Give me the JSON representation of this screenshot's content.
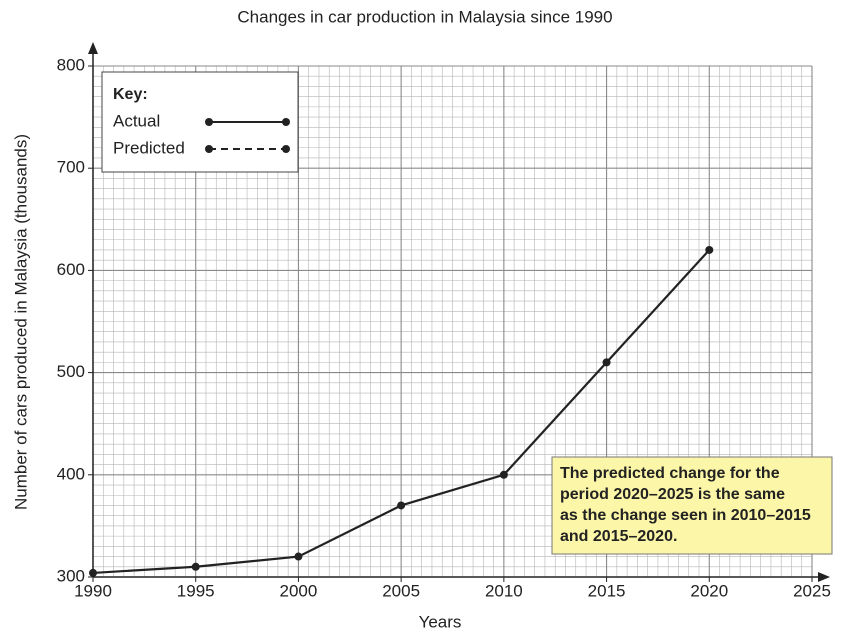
{
  "chart_data": {
    "type": "line",
    "title": "Changes in car production in Malaysia since 1990",
    "x_label": "Years",
    "y_label": "Number of cars produced in Malaysia (thousands)",
    "x": [
      1990,
      1995,
      2000,
      2005,
      2010,
      2015,
      2020
    ],
    "series": [
      {
        "name": "Actual",
        "color": "#222222",
        "style": "solid",
        "values": [
          304,
          310,
          320,
          370,
          400,
          510,
          620
        ]
      },
      {
        "name": "Predicted",
        "color": "#222222",
        "style": "dashed",
        "values": [
          null,
          null,
          null,
          null,
          null,
          null,
          null
        ]
      }
    ],
    "legend_title": "Key:",
    "legend_position": "upper left",
    "xlim": [
      1990,
      2025
    ],
    "xticks": [
      1990,
      1995,
      2000,
      2005,
      2010,
      2015,
      2020,
      2025
    ],
    "ylim": [
      300,
      800
    ],
    "yticks": [
      300,
      400,
      500,
      600,
      700,
      800
    ],
    "grid": true,
    "annotation": [
      "The predicted change for the",
      "period 2020–2025 is the same",
      "as the change seen in 2010–2015",
      "and 2015–2020."
    ]
  }
}
